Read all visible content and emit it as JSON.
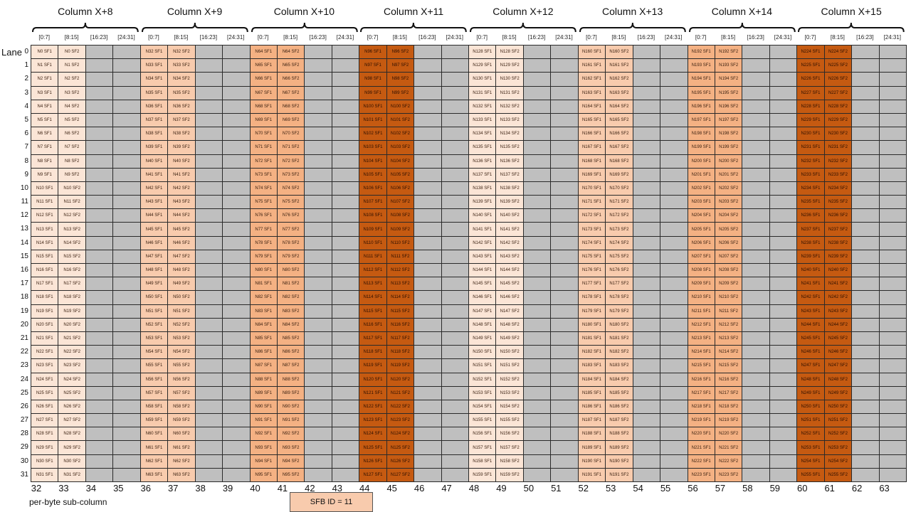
{
  "byte_labels": [
    "[0:7]",
    "[8:15]",
    "[16:23]",
    "[24:31]"
  ],
  "lane_title": "Lane",
  "footer_label": "per-byte sub-column",
  "sfb_legend": {
    "label": "SFB ID = 11",
    "color": "#f8cbad"
  },
  "empty_color": "#bfbfbf",
  "columns": [
    {
      "title": "Column X+8",
      "color": "#fbe5d6",
      "start_n": 0
    },
    {
      "title": "Column X+9",
      "color": "#f8cbad",
      "start_n": 32
    },
    {
      "title": "Column X+10",
      "color": "#f4b183",
      "start_n": 64
    },
    {
      "title": "Column X+11",
      "color": "#c55a11",
      "start_n": 96
    },
    {
      "title": "Column X+12",
      "color": "#fbe5d6",
      "start_n": 128
    },
    {
      "title": "Column X+13",
      "color": "#f8cbad",
      "start_n": 160
    },
    {
      "title": "Column X+14",
      "color": "#f4b183",
      "start_n": 192
    },
    {
      "title": "Column X+15",
      "color": "#c55a11",
      "start_n": 224
    }
  ],
  "cell_suffixes": [
    "SF1",
    "SF2"
  ],
  "lanes": [
    0,
    1,
    2,
    3,
    4,
    5,
    6,
    7,
    8,
    9,
    10,
    11,
    12,
    13,
    14,
    15,
    16,
    17,
    18,
    19,
    20,
    21,
    22,
    23,
    24,
    25,
    26,
    27,
    28,
    29,
    30,
    31
  ],
  "sub_columns": [
    32,
    33,
    34,
    35,
    36,
    37,
    38,
    39,
    40,
    41,
    42,
    43,
    44,
    45,
    46,
    47,
    48,
    49,
    50,
    51,
    52,
    53,
    54,
    55,
    56,
    57,
    58,
    59,
    60,
    61,
    62,
    63
  ]
}
